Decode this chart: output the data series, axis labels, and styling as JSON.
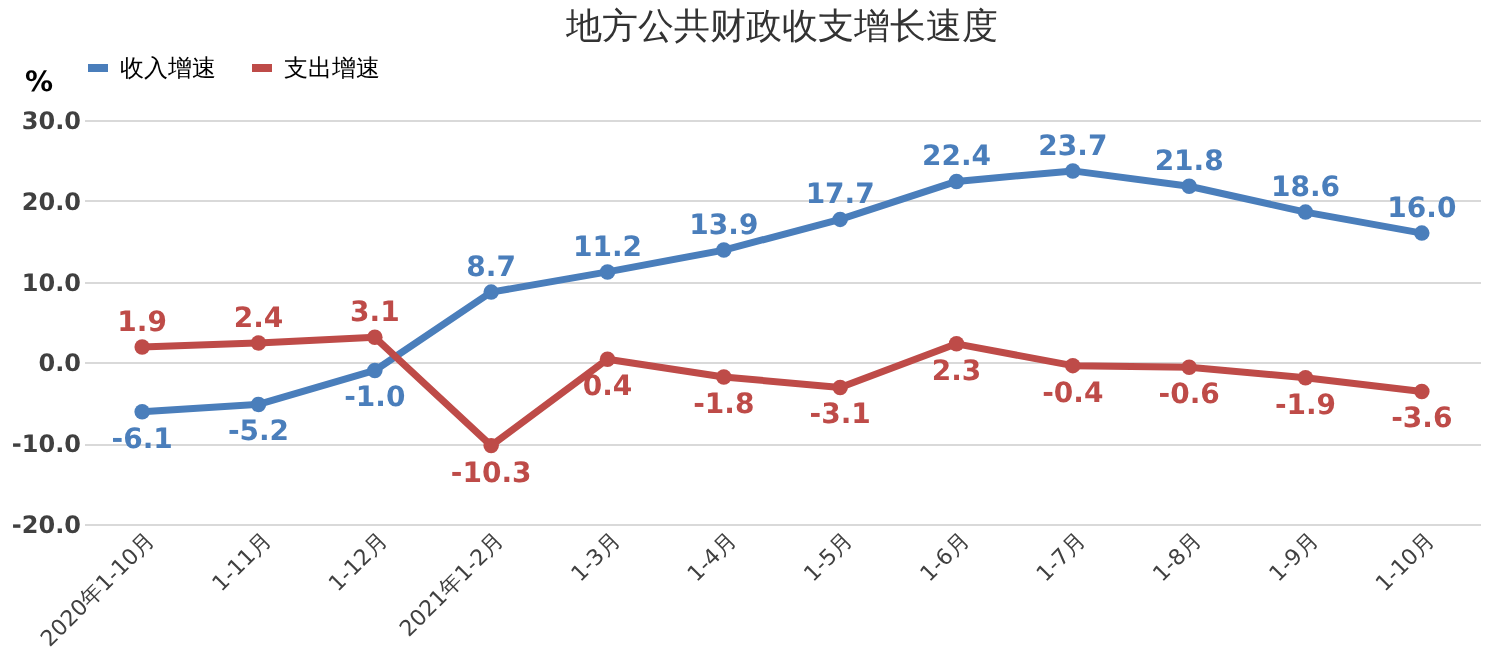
{
  "chart_data": {
    "type": "line",
    "title": "地方公共财政收支增长速度",
    "ylabel": "%",
    "categories": [
      "2020年1-10月",
      "1-11月",
      "1-12月",
      "2021年1-2月",
      "1-3月",
      "1-4月",
      "1-5月",
      "1-6月",
      "1-7月",
      "1-8月",
      "1-9月",
      "1-10月"
    ],
    "series": [
      {
        "name": "收入增速",
        "color": "#4a7ebb",
        "values": [
          -6.1,
          -5.2,
          -1.0,
          8.7,
          11.2,
          13.9,
          17.7,
          22.4,
          23.7,
          21.8,
          18.6,
          16.0
        ],
        "value_labels": [
          "-6.1",
          "-5.2",
          "-1.0",
          "8.7",
          "11.2",
          "13.9",
          "17.7",
          "22.4",
          "23.7",
          "21.8",
          "18.6",
          "16.0"
        ]
      },
      {
        "name": "支出增速",
        "color": "#be4b48",
        "values": [
          1.9,
          2.4,
          3.1,
          -10.3,
          0.4,
          -1.8,
          -3.1,
          2.3,
          -0.4,
          -0.6,
          -1.9,
          -3.6
        ],
        "value_labels": [
          "1.9",
          "2.4",
          "3.1",
          "-10.3",
          "0.4",
          "-1.8",
          "-3.1",
          "2.3",
          "-0.4",
          "-0.6",
          "-1.9",
          "-3.6"
        ]
      }
    ],
    "ylim": [
      -20,
      30
    ],
    "yticks": [
      {
        "value": -20,
        "label": "-20.0"
      },
      {
        "value": -10,
        "label": "-10.0"
      },
      {
        "value": 0,
        "label": "0.0"
      },
      {
        "value": 10,
        "label": "10.0"
      },
      {
        "value": 20,
        "label": "20.0"
      },
      {
        "value": 30,
        "label": "30.0"
      }
    ],
    "grid": "y",
    "legend": "top",
    "marker": "circle",
    "line_style": "solid"
  }
}
